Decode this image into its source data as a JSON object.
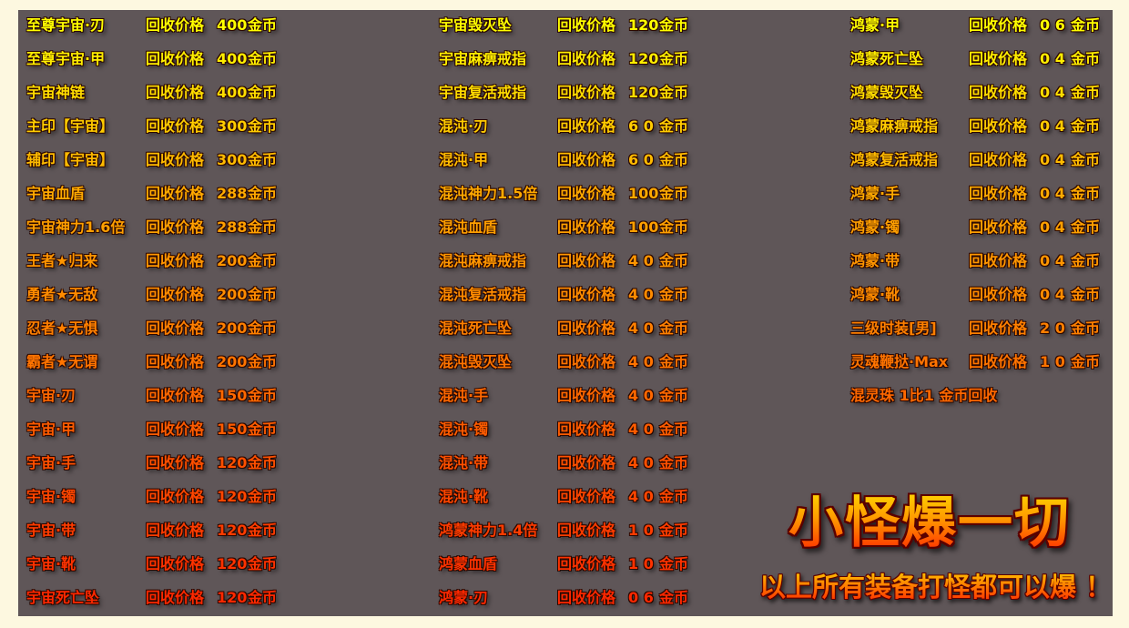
{
  "common": {
    "price_label": "回收价格",
    "currency": "金币"
  },
  "row_colors": [
    "#ffff00",
    "#ffee00",
    "#ffdd00",
    "#ffcc00",
    "#ffbb00",
    "#ffaa00",
    "#ffa000",
    "#ff9600",
    "#ff8c00",
    "#ff8000",
    "#ff7400",
    "#ff6800",
    "#ff5c00",
    "#ff5000",
    "#ff4600",
    "#ff3c00",
    "#ff3200",
    "#ff2800"
  ],
  "columns": [
    {
      "rows": [
        {
          "name": "至尊宇宙·刃",
          "price": "400"
        },
        {
          "name": "至尊宇宙·甲",
          "price": "400"
        },
        {
          "name": "宇宙神链",
          "price": "400"
        },
        {
          "name": "主印【宇宙】",
          "price": "300"
        },
        {
          "name": "辅印【宇宙】",
          "price": "300"
        },
        {
          "name": "宇宙血盾",
          "price": "288"
        },
        {
          "name": "宇宙神力1.6倍",
          "price": "288"
        },
        {
          "name": "王者★归来",
          "price": "200"
        },
        {
          "name": "勇者★无敌",
          "price": "200"
        },
        {
          "name": "忍者★无惧",
          "price": "200"
        },
        {
          "name": "霸者★无谓",
          "price": "200"
        },
        {
          "name": "宇宙·刃",
          "price": "150"
        },
        {
          "name": "宇宙·甲",
          "price": "150"
        },
        {
          "name": "宇宙·手",
          "price": "120"
        },
        {
          "name": "宇宙·镯",
          "price": "120"
        },
        {
          "name": "宇宙·带",
          "price": "120"
        },
        {
          "name": "宇宙·靴",
          "price": "120"
        },
        {
          "name": "宇宙死亡坠",
          "price": "120"
        }
      ]
    },
    {
      "rows": [
        {
          "name": "宇宙毁灭坠",
          "price": "120"
        },
        {
          "name": "宇宙麻痹戒指",
          "price": "120"
        },
        {
          "name": "宇宙复活戒指",
          "price": "120"
        },
        {
          "name": "混沌·刃",
          "price": "6 0"
        },
        {
          "name": "混沌·甲",
          "price": "6 0"
        },
        {
          "name": "混沌神力1.5倍",
          "price": "100"
        },
        {
          "name": "混沌血盾",
          "price": "100"
        },
        {
          "name": "混沌麻痹戒指",
          "price": "4 0"
        },
        {
          "name": "混沌复活戒指",
          "price": "4 0"
        },
        {
          "name": "混沌死亡坠",
          "price": "4 0"
        },
        {
          "name": "混沌毁灭坠",
          "price": "4 0"
        },
        {
          "name": "混沌·手",
          "price": "4 0"
        },
        {
          "name": "混沌·镯",
          "price": "4 0"
        },
        {
          "name": "混沌·带",
          "price": "4 0"
        },
        {
          "name": "混沌·靴",
          "price": "4 0"
        },
        {
          "name": "鸿蒙神力1.4倍",
          "price": "1 0"
        },
        {
          "name": "鸿蒙血盾",
          "price": "1 0"
        },
        {
          "name": "鸿蒙·刃",
          "price": "0 6"
        }
      ]
    },
    {
      "rows": [
        {
          "name": "鸿蒙·甲",
          "price": "0 6"
        },
        {
          "name": "鸿蒙死亡坠",
          "price": "0 4"
        },
        {
          "name": "鸿蒙毁灭坠",
          "price": "0 4"
        },
        {
          "name": "鸿蒙麻痹戒指",
          "price": "0 4"
        },
        {
          "name": "鸿蒙复活戒指",
          "price": "0 4"
        },
        {
          "name": "鸿蒙·手",
          "price": "0 4"
        },
        {
          "name": "鸿蒙·镯",
          "price": "0 4"
        },
        {
          "name": "鸿蒙·带",
          "price": "0 4"
        },
        {
          "name": "鸿蒙·靴",
          "price": "0 4"
        },
        {
          "name": "三级时装[男]",
          "price": "2 0"
        },
        {
          "name": "灵魂鞭挞·Max",
          "price": "1 0"
        }
      ]
    }
  ],
  "special_note": "混灵珠 1比1 金币回收",
  "banner": {
    "title": "小怪爆一切",
    "subtitle": "以上所有装备打怪都可以爆 ！"
  }
}
